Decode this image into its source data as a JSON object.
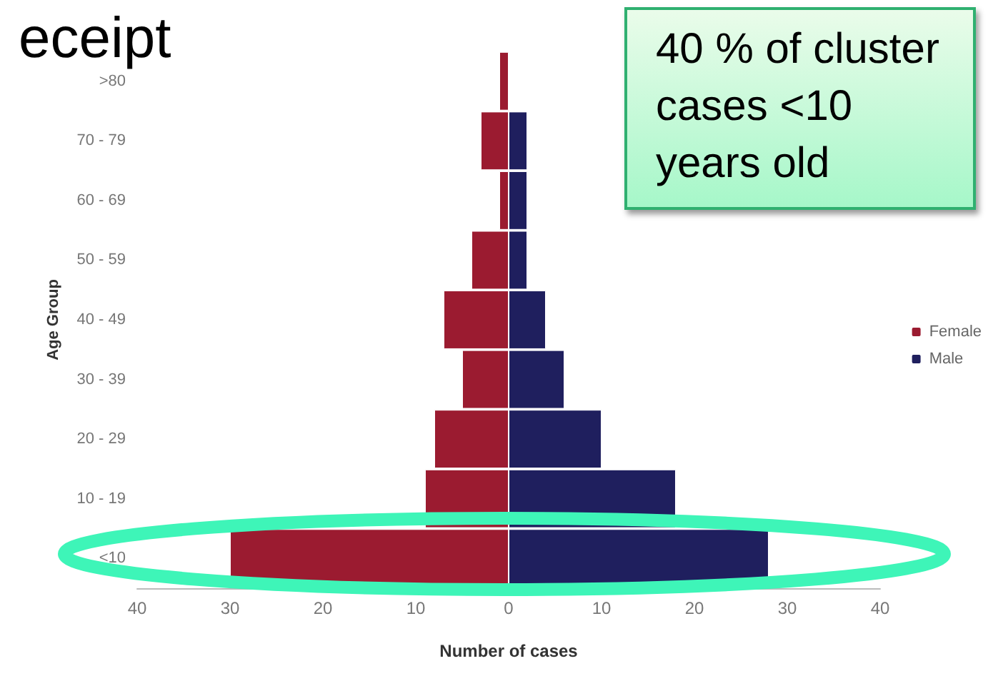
{
  "chart_data": {
    "type": "bar",
    "orientation": "horizontal",
    "stacked": true,
    "title": "eceipt",
    "xlabel": "Number of cases",
    "ylabel": "Age Group",
    "categories": [
      ">80",
      "70 - 79",
      "60 - 69",
      "50 - 59",
      "40 - 49",
      "30 - 39",
      "20 - 29",
      "10 - 19",
      "<10"
    ],
    "series": [
      {
        "name": "Female",
        "color": "#9b1b30",
        "values": [
          -1,
          -3,
          -1,
          -4,
          -7,
          -5,
          -8,
          -9,
          -30
        ]
      },
      {
        "name": "Male",
        "color": "#1f1f5e",
        "values": [
          0,
          2,
          2,
          2,
          4,
          6,
          10,
          18,
          28
        ]
      }
    ],
    "xlim": [
      -40,
      40
    ],
    "xticks": [
      {
        "value": -40,
        "label": "40"
      },
      {
        "value": -30,
        "label": "30"
      },
      {
        "value": -20,
        "label": "20"
      },
      {
        "value": -10,
        "label": "10"
      },
      0,
      10,
      20,
      30,
      40
    ],
    "grid": false,
    "legend": "right",
    "annotations": [
      "40 % of cluster cases <10 years old"
    ]
  }
}
